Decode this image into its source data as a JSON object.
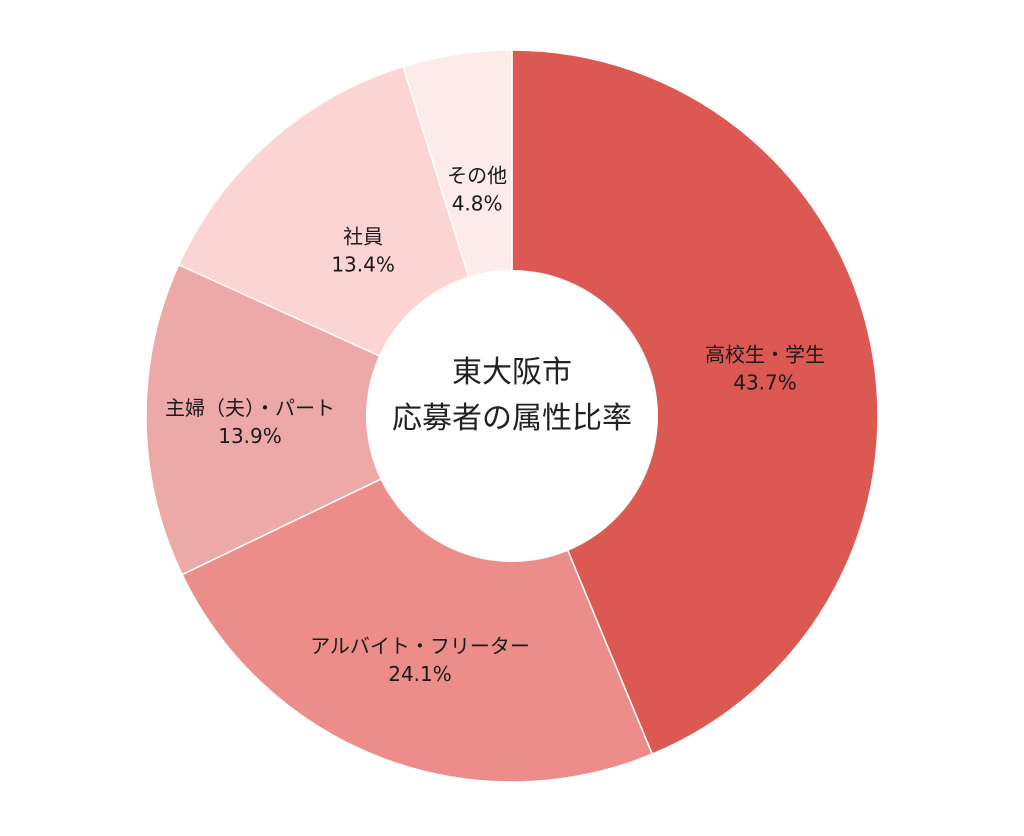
{
  "chart_data": {
    "type": "pie",
    "style": "donut",
    "title_lines": [
      "東大阪市",
      "応募者の属性比率"
    ],
    "slices": [
      {
        "name": "高校生・学生",
        "value": 43.7,
        "label": "43.7%",
        "color": "#dc5853"
      },
      {
        "name": "アルバイト・フリーター",
        "value": 24.1,
        "label": "24.1%",
        "color": "#ec8d8a"
      },
      {
        "name": "主婦（夫）・パート",
        "value": 13.9,
        "label": "13.9%",
        "color": "#eda9a7"
      },
      {
        "name": "社員",
        "value": 13.4,
        "label": "13.4%",
        "color": "#fbd4d3"
      },
      {
        "name": "その他",
        "value": 4.8,
        "label": "4.8%",
        "color": "#fdebea"
      }
    ],
    "start": "12 o'clock",
    "direction": "clockwise"
  }
}
